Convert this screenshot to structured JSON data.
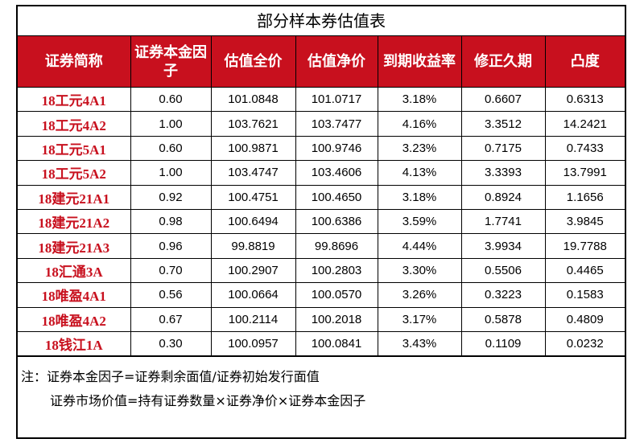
{
  "title": "部分样本券估值表",
  "headers": [
    "证券简称",
    "证券本金因子",
    "估值全价",
    "估值净价",
    "到期收益率",
    "修正久期",
    "凸度"
  ],
  "rows": [
    [
      "18工元4A1",
      "0.60",
      "101.0848",
      "101.0717",
      "3.18%",
      "0.6607",
      "0.6313"
    ],
    [
      "18工元4A2",
      "1.00",
      "103.7621",
      "103.7477",
      "4.16%",
      "3.3512",
      "14.2421"
    ],
    [
      "18工元5A1",
      "0.60",
      "100.9871",
      "100.9746",
      "3.23%",
      "0.7175",
      "0.7433"
    ],
    [
      "18工元5A2",
      "1.00",
      "103.4747",
      "103.4606",
      "4.13%",
      "3.3393",
      "13.7991"
    ],
    [
      "18建元21A1",
      "0.92",
      "100.4751",
      "100.4650",
      "3.18%",
      "0.8924",
      "1.1656"
    ],
    [
      "18建元21A2",
      "0.98",
      "100.6494",
      "100.6386",
      "3.59%",
      "1.7741",
      "3.9845"
    ],
    [
      "18建元21A3",
      "0.96",
      "99.8819",
      "99.8696",
      "4.44%",
      "3.9934",
      "19.7788"
    ],
    [
      "18汇通3A",
      "0.70",
      "100.2907",
      "100.2803",
      "3.30%",
      "0.5506",
      "0.4465"
    ],
    [
      "18唯盈4A1",
      "0.56",
      "100.0664",
      "100.0570",
      "3.26%",
      "0.3223",
      "0.1583"
    ],
    [
      "18唯盈4A2",
      "0.67",
      "100.2114",
      "100.2018",
      "3.17%",
      "0.5878",
      "0.4809"
    ],
    [
      "18钱江1A",
      "0.30",
      "100.0957",
      "100.0841",
      "3.43%",
      "0.1109",
      "0.0232"
    ]
  ],
  "notes": {
    "line1": "注：证券本金因子=证券剩余面值/证券初始发行面值",
    "line2": "证券市场价值=持有证券数量×证券净价×证券本金因子"
  },
  "colors": {
    "header_bg": "#c8101e",
    "header_text": "#ffffff",
    "name_text": "#c8101e"
  }
}
